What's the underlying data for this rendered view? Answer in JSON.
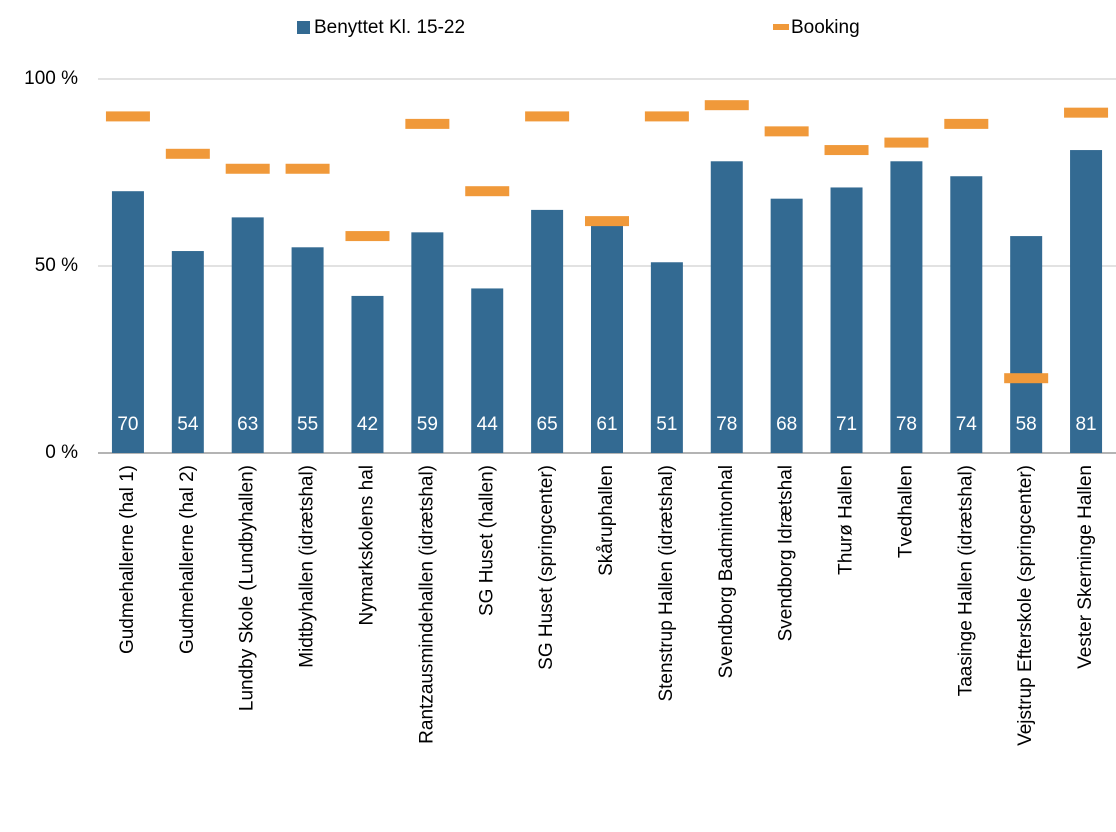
{
  "chart_data": {
    "type": "bar",
    "categories": [
      "Gudmehallerne (hal 1)",
      "Gudmehallerne (hal 2)",
      "Lundby Skole (Lundbyhallen)",
      "Midtbyhallen (idrætshal)",
      "Nymarkskolens hal",
      "Rantzausmindehallen (idrætshal)",
      "SG Huset (hallen)",
      "SG Huset (springcenter)",
      "Skåruphallen",
      "Stenstrup Hallen (idrætshal)",
      "Svendborg Badmintonhal",
      "Svendborg Idrætshal",
      "Thurø Hallen",
      "Tvedhallen",
      "Taasinge Hallen (idrætshal)",
      "Vejstrup Efterskole (springcenter)",
      "Vester Skerninge Hallen"
    ],
    "series": [
      {
        "name": "Benyttet Kl. 15-22",
        "type": "bar",
        "color": "#336a92",
        "values": [
          70,
          54,
          63,
          55,
          42,
          59,
          44,
          65,
          61,
          51,
          78,
          68,
          71,
          78,
          74,
          58,
          81
        ]
      },
      {
        "name": "Booking",
        "type": "marker",
        "color": "#f0993a",
        "values": [
          90,
          80,
          76,
          76,
          58,
          88,
          70,
          90,
          62,
          90,
          93,
          86,
          81,
          83,
          88,
          20,
          91
        ]
      }
    ],
    "ylim": [
      0,
      100
    ],
    "yticks": [
      {
        "value": 0,
        "label": "0 %"
      },
      {
        "value": 50,
        "label": "50 %"
      },
      {
        "value": 100,
        "label": "100 %"
      }
    ],
    "grid": true,
    "legend": "top",
    "data_labels": true
  }
}
